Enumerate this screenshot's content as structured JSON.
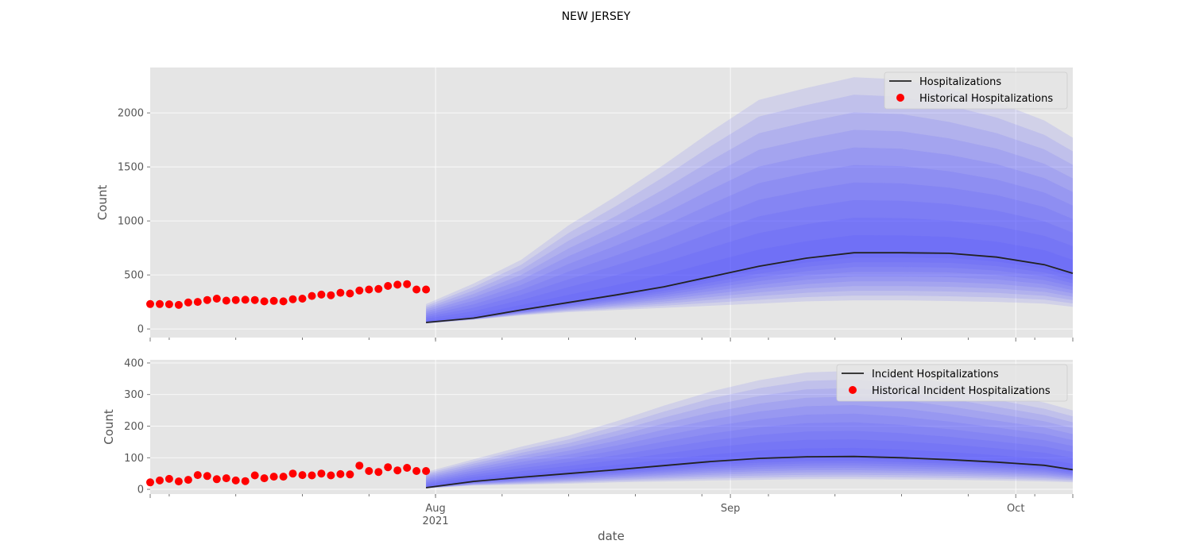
{
  "figure": {
    "title": "NEW JERSEY",
    "xlabel": "date"
  },
  "colors": {
    "panel_bg": "#e5e5e5",
    "grid": "#ffffff",
    "median_line": "#222222",
    "historical_points": "#ff0000",
    "band": "#4d4dff"
  },
  "x_axis": {
    "domain": [
      "2021-07-02",
      "2021-10-07"
    ],
    "major_ticks": [
      {
        "date": "2021-08-01",
        "label": "Aug",
        "sublabel": "2021"
      },
      {
        "date": "2021-09-01",
        "label": "Sep",
        "sublabel": ""
      },
      {
        "date": "2021-10-01",
        "label": "Oct",
        "sublabel": ""
      }
    ]
  },
  "chart_data": [
    {
      "type": "line",
      "ylabel": "Count",
      "ylim": [
        -80,
        2420
      ],
      "yticks": [
        0,
        500,
        1000,
        1500,
        2000
      ],
      "grid": true,
      "legend_position": "top-right",
      "legend": [
        "Hospitalizations",
        "Historical Hospitalizations"
      ],
      "historical": {
        "name": "Historical Hospitalizations",
        "start": "2021-07-02",
        "end": "2021-07-31",
        "values": [
          230,
          230,
          228,
          222,
          245,
          250,
          268,
          280,
          262,
          268,
          270,
          268,
          255,
          260,
          255,
          275,
          280,
          305,
          318,
          312,
          335,
          328,
          355,
          365,
          370,
          398,
          410,
          415,
          365,
          365
        ]
      },
      "forecast": {
        "name": "Hospitalizations",
        "x": [
          "2021-07-31",
          "2021-08-05",
          "2021-08-10",
          "2021-08-15",
          "2021-08-20",
          "2021-08-25",
          "2021-08-30",
          "2021-09-04",
          "2021-09-09",
          "2021-09-14",
          "2021-09-19",
          "2021-09-24",
          "2021-09-29",
          "2021-10-04",
          "2021-10-07"
        ],
        "median": [
          60,
          100,
          175,
          245,
          315,
          390,
          485,
          580,
          655,
          705,
          705,
          700,
          665,
          595,
          515
        ],
        "outer_lower": [
          50,
          85,
          125,
          155,
          175,
          195,
          215,
          235,
          255,
          265,
          265,
          258,
          250,
          235,
          205
        ],
        "outer_upper": [
          230,
          420,
          640,
          960,
          1230,
          1520,
          1830,
          2120,
          2230,
          2330,
          2310,
          2220,
          2100,
          1930,
          1770
        ]
      }
    },
    {
      "type": "line",
      "ylabel": "Count",
      "ylim": [
        -15,
        410
      ],
      "yticks": [
        0,
        100,
        200,
        300,
        400
      ],
      "grid": true,
      "legend_position": "top-right",
      "legend": [
        "Incident Hospitalizations",
        "Historical Incident Hospitalizations"
      ],
      "historical": {
        "name": "Historical Incident Hospitalizations",
        "start": "2021-07-02",
        "end": "2021-07-31",
        "values": [
          22,
          28,
          33,
          25,
          30,
          45,
          42,
          32,
          35,
          28,
          26,
          44,
          35,
          40,
          40,
          50,
          45,
          44,
          50,
          44,
          48,
          47,
          75,
          58,
          55,
          70,
          60,
          68,
          58,
          58
        ]
      },
      "forecast": {
        "name": "Incident Hospitalizations",
        "x": [
          "2021-07-31",
          "2021-08-05",
          "2021-08-10",
          "2021-08-15",
          "2021-08-20",
          "2021-08-25",
          "2021-08-30",
          "2021-09-04",
          "2021-09-09",
          "2021-09-14",
          "2021-09-19",
          "2021-09-24",
          "2021-09-29",
          "2021-10-04",
          "2021-10-07"
        ],
        "median": [
          5,
          25,
          38,
          50,
          62,
          75,
          88,
          98,
          103,
          104,
          100,
          94,
          86,
          76,
          62
        ],
        "outer_lower": [
          3,
          12,
          15,
          18,
          22,
          25,
          28,
          30,
          32,
          32,
          31,
          30,
          28,
          25,
          22
        ],
        "outer_upper": [
          55,
          95,
          135,
          170,
          215,
          265,
          310,
          345,
          370,
          375,
          360,
          335,
          305,
          275,
          250
        ]
      }
    }
  ]
}
